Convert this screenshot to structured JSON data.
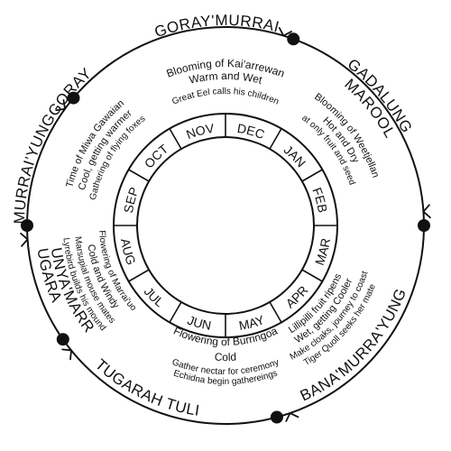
{
  "colors": {
    "ink": "#111111",
    "background": "#ffffff"
  },
  "seasons": [
    {
      "key": "goray",
      "name": "GORAY'MURRAI",
      "lines": [
        "Blooming of Kai'arrewan",
        "Warm and Wet",
        "Great Eel calls his children"
      ]
    },
    {
      "key": "gadalung",
      "name": [
        "GADALUNG",
        "MAROOL"
      ],
      "lines": [
        "Blooming of Weetjellan",
        "Hot and Dry",
        "Eat only fruit and seeds"
      ]
    },
    {
      "key": "bana",
      "name": "BANA'MURRA'YUNG",
      "lines": [
        "Lillipilli fruit ripens",
        "Wet, getting Cooler",
        "Make cloaks, journey to coast",
        "Tiger Quoll seeks her mate"
      ]
    },
    {
      "key": "tuli",
      "name": "TUGARAH TULI",
      "lines": [
        "Flowering of Burringoa",
        "Cold",
        "Gather nectar for ceremony",
        "Echidna begin gathereings"
      ]
    },
    {
      "key": "gunya",
      "name": [
        "TUGARAH",
        "GUNYA'MARRA"
      ],
      "lines": [
        "Flowering of Marrai'uo",
        "Cold and Windy",
        "Marsupial mouse mates",
        "Lyrebird builds his mound"
      ]
    },
    {
      "key": "murrai",
      "name": "MURRAI'YUNGGORAY",
      "lines": [
        "Time of Miwa Gawaian",
        "Cool, getting warmer",
        "Gathering of flying foxes"
      ]
    }
  ],
  "months": [
    "OCT",
    "NOV",
    "DEC",
    "JAN",
    "FEB",
    "MAR",
    "APR",
    "MAY",
    "JUN",
    "JUL",
    "AUG",
    "SEP"
  ]
}
